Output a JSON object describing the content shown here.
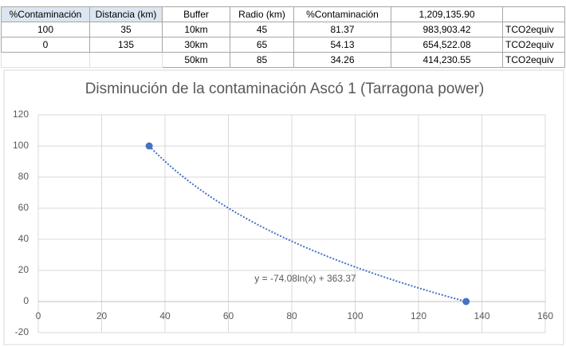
{
  "left_table": {
    "headers": [
      "%Contaminación",
      "Distancia (km)"
    ],
    "rows": [
      [
        "100",
        "35"
      ],
      [
        "0",
        "135"
      ]
    ]
  },
  "right_table": {
    "headers": [
      "Buffer",
      "Radio (km)",
      "%Contaminación",
      "1,209,135.90"
    ],
    "rows": [
      [
        "10km",
        "45",
        "81.37",
        "983,903.42",
        "TCO2equiv"
      ],
      [
        "30km",
        "65",
        "54.13",
        "654,522.08",
        "TCO2equiv"
      ],
      [
        "50km",
        "85",
        "34.26",
        "414,230.55",
        "TCO2equiv"
      ]
    ]
  },
  "chart_data": {
    "type": "scatter",
    "title": "Disminución de la contaminación Ascó 1 (Tarragona power)",
    "x": [
      35,
      135
    ],
    "values": [
      100,
      0
    ],
    "color": "#4472c4",
    "xlim": [
      0,
      160
    ],
    "xticks": [
      0,
      20,
      40,
      60,
      80,
      100,
      120,
      140,
      160
    ],
    "ylim": [
      -20,
      120
    ],
    "yticks": [
      -20,
      0,
      20,
      40,
      60,
      80,
      100,
      120
    ],
    "grid": true,
    "trendline": {
      "type": "log",
      "coefficient": -74.08,
      "intercept": 363.37,
      "label": "y = -74.08ln(x) + 363.37"
    }
  }
}
